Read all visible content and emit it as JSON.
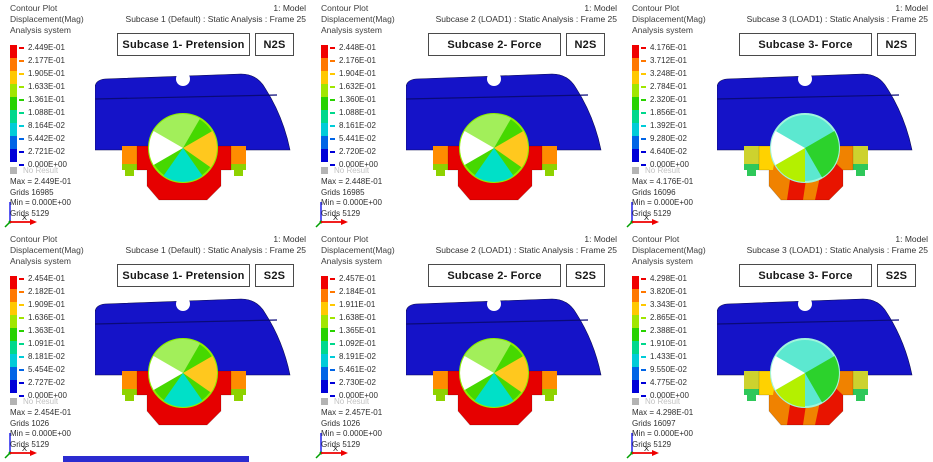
{
  "common": {
    "corner_lines": [
      "Contour Plot",
      "Displacement(Mag)",
      "Analysis system"
    ],
    "no_result_label": "No Result",
    "triad_axis_label": "X",
    "legend_colors": [
      "#f00000",
      "#ff7800",
      "#ffc800",
      "#a0e600",
      "#28d200",
      "#00d88c",
      "#00ccd8",
      "#0064e6",
      "#0000d8"
    ],
    "no_result_color": "#b4b4b4",
    "dome_color": "#1513c8",
    "bracket_color_subcase12": "#e60000",
    "bracket_color_subcase3": "#f08200"
  },
  "panels": [
    {
      "model_title": "1: Model",
      "subcase_info": "Subcase 1 (Default) : Static Analysis : Frame 25",
      "subcase_label": "Subcase 1- Pretension",
      "tag": "N2S",
      "variant": "A",
      "legend_values": [
        "2.449E-01",
        "2.177E-01",
        "1.905E-01",
        "1.633E-01",
        "1.361E-01",
        "1.088E-01",
        "8.164E-02",
        "5.442E-02",
        "2.721E-02",
        "0.000E+00"
      ],
      "stats": [
        "Max = 2.449E-01",
        "Grids 16985",
        "Min = 0.000E+00",
        "Grids 5129"
      ]
    },
    {
      "model_title": "1: Model",
      "subcase_info": "Subcase 2 (LOAD1) : Static Analysis : Frame 25",
      "subcase_label": "Subcase 2- Force",
      "tag": "N2S",
      "variant": "A",
      "legend_values": [
        "2.448E-01",
        "2.176E-01",
        "1.904E-01",
        "1.632E-01",
        "1.360E-01",
        "1.088E-01",
        "8.161E-02",
        "5.441E-02",
        "2.720E-02",
        "0.000E+00"
      ],
      "stats": [
        "Max = 2.448E-01",
        "Grids 16985",
        "Min = 0.000E+00",
        "Grids 5129"
      ]
    },
    {
      "model_title": "1: Model",
      "subcase_info": "Subcase 3 (LOAD1) : Static Analysis : Frame 25",
      "subcase_label": "Subcase 3- Force",
      "tag": "N2S",
      "variant": "B",
      "legend_values": [
        "4.176E-01",
        "3.712E-01",
        "3.248E-01",
        "2.784E-01",
        "2.320E-01",
        "1.856E-01",
        "1.392E-01",
        "9.280E-02",
        "4.640E-02",
        "0.000E+00"
      ],
      "stats": [
        "Max = 4.176E-01",
        "Grids 16096",
        "Min = 0.000E+00",
        "Grids 5129"
      ]
    },
    {
      "model_title": "1: Model",
      "subcase_info": "Subcase 1 (Default) : Static Analysis : Frame 25",
      "subcase_label": "Subcase 1- Pretension",
      "tag": "S2S",
      "variant": "A",
      "legend_values": [
        "2.454E-01",
        "2.182E-01",
        "1.909E-01",
        "1.636E-01",
        "1.363E-01",
        "1.091E-01",
        "8.181E-02",
        "5.454E-02",
        "2.727E-02",
        "0.000E+00"
      ],
      "stats": [
        "Max = 2.454E-01",
        "Grids 1026",
        "Min = 0.000E+00",
        "Grids 5129"
      ]
    },
    {
      "model_title": "1: Model",
      "subcase_info": "Subcase 2 (LOAD1) : Static Analysis : Frame 25",
      "subcase_label": "Subcase 2- Force",
      "tag": "S2S",
      "variant": "A",
      "legend_values": [
        "2.457E-01",
        "2.184E-01",
        "1.911E-01",
        "1.638E-01",
        "1.365E-01",
        "1.092E-01",
        "8.191E-02",
        "5.461E-02",
        "2.730E-02",
        "0.000E+00"
      ],
      "stats": [
        "Max = 2.457E-01",
        "Grids 1026",
        "Min = 0.000E+00",
        "Grids 5129"
      ]
    },
    {
      "model_title": "1: Model",
      "subcase_info": "Subcase 3 (LOAD1) : Static Analysis : Frame 25",
      "subcase_label": "Subcase 3- Force",
      "tag": "S2S",
      "variant": "B",
      "legend_values": [
        "4.298E-01",
        "3.820E-01",
        "3.343E-01",
        "2.865E-01",
        "2.388E-01",
        "1.910E-01",
        "1.433E-01",
        "9.550E-02",
        "4.775E-02",
        "0.000E+00"
      ],
      "stats": [
        "Max = 4.298E-01",
        "Grids 16097",
        "Min = 0.000E+00",
        "Grids 5129"
      ]
    }
  ]
}
